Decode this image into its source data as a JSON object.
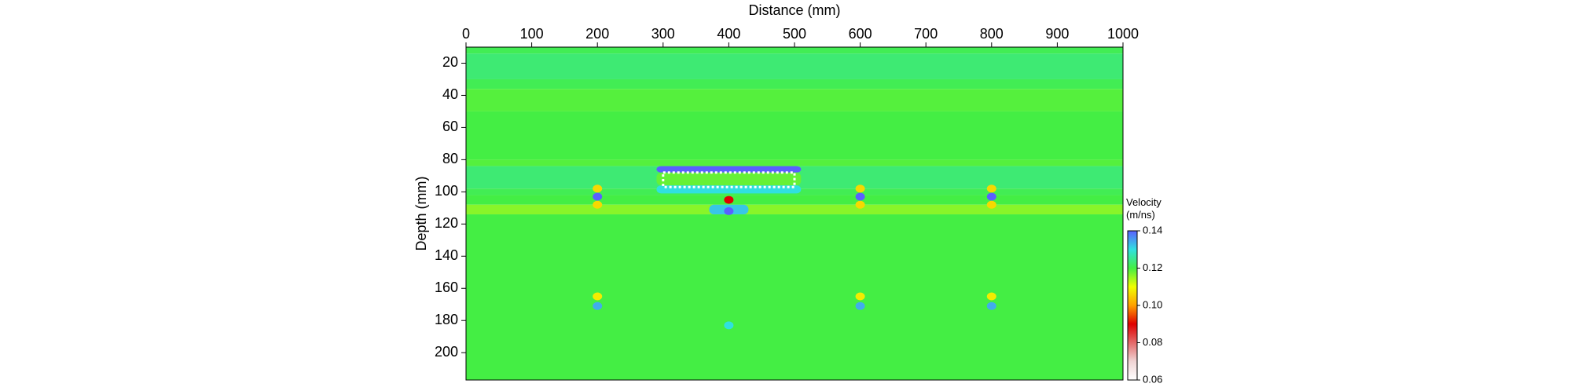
{
  "chart_data": {
    "type": "heatmap",
    "x_label": "Distance (mm)",
    "y_label": "Depth (mm)",
    "xlim": [
      0,
      1000
    ],
    "xticks": [
      0,
      100,
      200,
      300,
      400,
      500,
      600,
      700,
      800,
      900,
      1000
    ],
    "ylim": [
      10,
      217
    ],
    "yticks": [
      20,
      40,
      60,
      80,
      100,
      120,
      140,
      160,
      180,
      200
    ],
    "bands": {
      "edges": [
        10,
        14,
        30,
        36,
        50,
        80,
        84,
        98,
        102,
        108,
        114,
        217
      ],
      "values": [
        0.121,
        0.123,
        0.121,
        0.119,
        0.12,
        0.119,
        0.123,
        0.121,
        0.12,
        0.116,
        0.12
      ]
    },
    "regions": [
      {
        "x": [
          290,
          510
        ],
        "y": [
          84,
          88
        ],
        "value": 0.14
      },
      {
        "x": [
          290,
          510
        ],
        "y": [
          88,
          96
        ],
        "value": 0.118
      },
      {
        "x": [
          290,
          510
        ],
        "y": [
          96,
          101
        ],
        "value": 0.13
      },
      {
        "x": [
          370,
          430
        ],
        "y": [
          108,
          114
        ],
        "value": 0.132
      }
    ],
    "anomalies": [
      {
        "x": 200,
        "y": 98,
        "value": 0.106
      },
      {
        "x": 200,
        "y": 108,
        "value": 0.106
      },
      {
        "x": 200,
        "y": 103,
        "value": 0.14
      },
      {
        "x": 600,
        "y": 98,
        "value": 0.106
      },
      {
        "x": 600,
        "y": 108,
        "value": 0.106
      },
      {
        "x": 600,
        "y": 103,
        "value": 0.14
      },
      {
        "x": 800,
        "y": 98,
        "value": 0.106
      },
      {
        "x": 800,
        "y": 108,
        "value": 0.106
      },
      {
        "x": 800,
        "y": 103,
        "value": 0.14
      },
      {
        "x": 400,
        "y": 105,
        "value": 0.09
      },
      {
        "x": 400,
        "y": 112,
        "value": 0.14
      },
      {
        "x": 200,
        "y": 165,
        "value": 0.108
      },
      {
        "x": 200,
        "y": 171,
        "value": 0.134
      },
      {
        "x": 600,
        "y": 165,
        "value": 0.108
      },
      {
        "x": 600,
        "y": 171,
        "value": 0.134
      },
      {
        "x": 800,
        "y": 165,
        "value": 0.108
      },
      {
        "x": 800,
        "y": 171,
        "value": 0.134
      },
      {
        "x": 400,
        "y": 183,
        "value": 0.13
      }
    ],
    "target_box": {
      "x": [
        300,
        500
      ],
      "y": [
        88,
        97
      ]
    },
    "colorbar": {
      "label": "Velocity (m/ns)",
      "lim": [
        0.06,
        0.14
      ],
      "ticks": [
        0.06,
        0.08,
        0.1,
        0.12,
        0.14
      ],
      "colors": [
        "#ffffff",
        "#f0d4d4",
        "#e46a6a",
        "#e00000",
        "#ffa000",
        "#f0ff00",
        "#44ee44",
        "#30e0e0",
        "#5a60ff"
      ]
    }
  }
}
